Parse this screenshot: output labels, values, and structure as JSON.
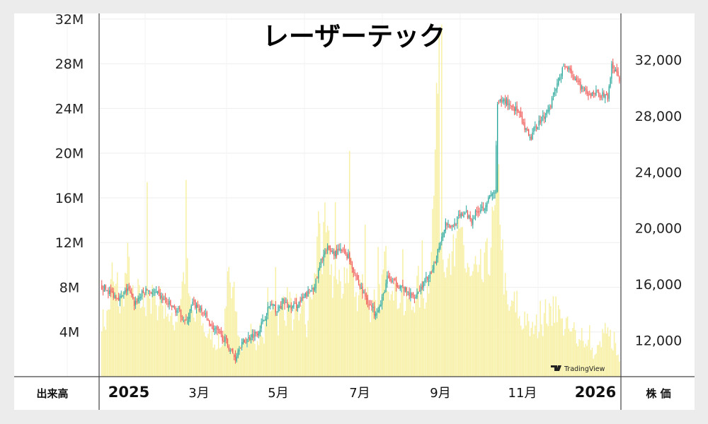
{
  "chart_data": {
    "type": "candlestick",
    "title": "レーザーテック",
    "left_axis": {
      "name": "出来高",
      "ticks": [
        "4M",
        "8M",
        "12M",
        "16M",
        "20M",
        "24M",
        "28M",
        "32M"
      ],
      "tick_values": [
        4,
        8,
        12,
        16,
        20,
        24,
        28,
        32
      ],
      "unit": "M",
      "ylim": [
        0,
        32.5
      ]
    },
    "right_axis": {
      "name": "株 価",
      "ticks": [
        "12,000",
        "16,000",
        "20,000",
        "24,000",
        "28,000",
        "32,000"
      ],
      "tick_values": [
        12000,
        16000,
        20000,
        24000,
        28000,
        32000
      ],
      "ylim": [
        9400,
        35300
      ]
    },
    "x_axis": {
      "labels": [
        {
          "text": "2025",
          "bold": true
        },
        {
          "text": "3月",
          "bold": false
        },
        {
          "text": "5月",
          "bold": false
        },
        {
          "text": "7月",
          "bold": false
        },
        {
          "text": "9月",
          "bold": false
        },
        {
          "text": "11月",
          "bold": false
        },
        {
          "text": "2026",
          "bold": true
        }
      ]
    },
    "grid": true,
    "colors": {
      "up": "#26a69a",
      "down": "#ef5350",
      "volume": "#f7f0a4",
      "grid": "#eeeeee",
      "axis": "#444444"
    },
    "price_path": [
      [
        0,
        15800
      ],
      [
        5,
        15500
      ],
      [
        10,
        15200
      ],
      [
        15,
        15000
      ],
      [
        20,
        15700
      ],
      [
        25,
        14600
      ],
      [
        30,
        15200
      ],
      [
        35,
        15600
      ],
      [
        40,
        15400
      ],
      [
        45,
        15100
      ],
      [
        50,
        14700
      ],
      [
        55,
        14300
      ],
      [
        60,
        14000
      ],
      [
        65,
        13200
      ],
      [
        70,
        14600
      ],
      [
        75,
        14300
      ],
      [
        80,
        13700
      ],
      [
        85,
        13000
      ],
      [
        90,
        12500
      ],
      [
        95,
        12000
      ],
      [
        100,
        11200
      ],
      [
        103,
        10700
      ],
      [
        106,
        11600
      ],
      [
        110,
        11900
      ],
      [
        115,
        12300
      ],
      [
        120,
        12600
      ],
      [
        125,
        13500
      ],
      [
        130,
        14600
      ],
      [
        135,
        14100
      ],
      [
        140,
        14700
      ],
      [
        145,
        14300
      ],
      [
        150,
        14500
      ],
      [
        155,
        14900
      ],
      [
        160,
        15500
      ],
      [
        165,
        16100
      ],
      [
        170,
        18000
      ],
      [
        175,
        18500
      ],
      [
        180,
        18200
      ],
      [
        185,
        18400
      ],
      [
        190,
        18000
      ],
      [
        195,
        16800
      ],
      [
        200,
        15600
      ],
      [
        205,
        14800
      ],
      [
        210,
        14000
      ],
      [
        215,
        14500
      ],
      [
        220,
        16400
      ],
      [
        225,
        16100
      ],
      [
        230,
        15900
      ],
      [
        235,
        15400
      ],
      [
        240,
        15100
      ],
      [
        245,
        15600
      ],
      [
        250,
        16300
      ],
      [
        255,
        16800
      ],
      [
        260,
        18800
      ],
      [
        265,
        20400
      ],
      [
        270,
        20100
      ],
      [
        275,
        20700
      ],
      [
        280,
        21100
      ],
      [
        285,
        20600
      ],
      [
        290,
        21300
      ],
      [
        295,
        21600
      ],
      [
        300,
        22300
      ],
      [
        303,
        22600
      ],
      [
        305,
        28800
      ],
      [
        310,
        29100
      ],
      [
        315,
        28800
      ],
      [
        320,
        28400
      ],
      [
        325,
        27300
      ],
      [
        330,
        26300
      ],
      [
        335,
        27300
      ],
      [
        340,
        27900
      ],
      [
        345,
        28600
      ],
      [
        350,
        30000
      ],
      [
        355,
        31300
      ],
      [
        360,
        31600
      ],
      [
        365,
        30400
      ],
      [
        370,
        30000
      ],
      [
        375,
        29300
      ],
      [
        380,
        29700
      ],
      [
        385,
        29500
      ],
      [
        390,
        29300
      ],
      [
        393,
        31500
      ],
      [
        396,
        31100
      ],
      [
        399,
        30600
      ]
    ],
    "volume_path": [
      [
        0,
        5.2
      ],
      [
        3,
        4.8
      ],
      [
        6,
        6.5
      ],
      [
        8,
        9.2
      ],
      [
        10,
        7.5
      ],
      [
        12,
        8.2
      ],
      [
        14,
        6.0
      ],
      [
        16,
        7.0
      ],
      [
        18,
        8.6
      ],
      [
        20,
        10.1
      ],
      [
        22,
        8.8
      ],
      [
        24,
        6.9
      ],
      [
        26,
        6.3
      ],
      [
        28,
        7.4
      ],
      [
        30,
        6.5
      ],
      [
        32,
        7.0
      ],
      [
        34,
        6.4
      ],
      [
        35,
        17.6
      ],
      [
        36,
        8.2
      ],
      [
        38,
        6.2
      ],
      [
        40,
        7.6
      ],
      [
        42,
        5.5
      ],
      [
        45,
        7.8
      ],
      [
        48,
        6.0
      ],
      [
        50,
        6.7
      ],
      [
        52,
        5.3
      ],
      [
        55,
        4.6
      ],
      [
        58,
        5.4
      ],
      [
        60,
        6.6
      ],
      [
        62,
        8.4
      ],
      [
        64,
        9.4
      ],
      [
        65,
        17.6
      ],
      [
        66,
        9.0
      ],
      [
        68,
        6.2
      ],
      [
        70,
        5.6
      ],
      [
        72,
        4.9
      ],
      [
        75,
        6.2
      ],
      [
        78,
        4.6
      ],
      [
        80,
        3.9
      ],
      [
        82,
        3.4
      ],
      [
        84,
        4.0
      ],
      [
        86,
        3.2
      ],
      [
        88,
        2.8
      ],
      [
        90,
        3.3
      ],
      [
        92,
        2.5
      ],
      [
        94,
        4.2
      ],
      [
        96,
        7.5
      ],
      [
        98,
        8.4
      ],
      [
        100,
        6.0
      ],
      [
        102,
        7.6
      ],
      [
        104,
        5.4
      ],
      [
        106,
        4.0
      ],
      [
        108,
        2.9
      ],
      [
        110,
        3.6
      ],
      [
        112,
        2.6
      ],
      [
        114,
        3.8
      ],
      [
        116,
        4.3
      ],
      [
        118,
        2.5
      ],
      [
        120,
        3.2
      ],
      [
        122,
        4.0
      ],
      [
        124,
        3.0
      ],
      [
        126,
        4.5
      ],
      [
        128,
        6.6
      ],
      [
        130,
        5.4
      ],
      [
        132,
        7.8
      ],
      [
        134,
        6.5
      ],
      [
        136,
        4.6
      ],
      [
        138,
        5.7
      ],
      [
        140,
        7.2
      ],
      [
        142,
        5.5
      ],
      [
        144,
        8.0
      ],
      [
        146,
        6.0
      ],
      [
        148,
        4.4
      ],
      [
        150,
        6.1
      ],
      [
        152,
        4.5
      ],
      [
        154,
        7.2
      ],
      [
        156,
        5.8
      ],
      [
        158,
        4.0
      ],
      [
        160,
        6.5
      ],
      [
        162,
        7.4
      ],
      [
        164,
        8.4
      ],
      [
        166,
        11.4
      ],
      [
        168,
        14.2
      ],
      [
        170,
        10.0
      ],
      [
        172,
        12.8
      ],
      [
        174,
        11.6
      ],
      [
        176,
        10.5
      ],
      [
        178,
        8.4
      ],
      [
        180,
        9.6
      ],
      [
        182,
        7.4
      ],
      [
        184,
        8.6
      ],
      [
        186,
        7.6
      ],
      [
        188,
        9.8
      ],
      [
        190,
        8.3
      ],
      [
        192,
        10.4
      ],
      [
        194,
        8.4
      ],
      [
        196,
        6.8
      ],
      [
        198,
        8.0
      ],
      [
        200,
        9.1
      ],
      [
        202,
        7.6
      ],
      [
        204,
        8.4
      ],
      [
        206,
        6.6
      ],
      [
        208,
        5.4
      ],
      [
        210,
        6.6
      ],
      [
        212,
        5.0
      ],
      [
        214,
        6.9
      ],
      [
        216,
        8.2
      ],
      [
        218,
        10.2
      ],
      [
        220,
        9.7
      ],
      [
        222,
        8.4
      ],
      [
        224,
        9.4
      ],
      [
        226,
        8.0
      ],
      [
        228,
        7.0
      ],
      [
        230,
        7.6
      ],
      [
        232,
        6.4
      ],
      [
        234,
        6.0
      ],
      [
        236,
        7.2
      ],
      [
        238,
        6.0
      ],
      [
        240,
        6.5
      ],
      [
        242,
        7.7
      ],
      [
        244,
        8.2
      ],
      [
        246,
        6.4
      ],
      [
        248,
        7.0
      ],
      [
        250,
        7.6
      ],
      [
        252,
        8.7
      ],
      [
        254,
        12.4
      ],
      [
        256,
        15.8
      ],
      [
        258,
        25.2
      ],
      [
        260,
        16.4
      ],
      [
        262,
        11.6
      ],
      [
        264,
        10.2
      ],
      [
        266,
        12.5
      ],
      [
        268,
        9.5
      ],
      [
        270,
        12.7
      ],
      [
        272,
        8.8
      ],
      [
        274,
        13.4
      ],
      [
        276,
        11.0
      ],
      [
        278,
        12.6
      ],
      [
        280,
        9.4
      ],
      [
        282,
        10.6
      ],
      [
        284,
        9.0
      ],
      [
        286,
        8.6
      ],
      [
        288,
        10.2
      ],
      [
        290,
        8.0
      ],
      [
        292,
        9.4
      ],
      [
        294,
        8.5
      ],
      [
        296,
        10.0
      ],
      [
        298,
        9.8
      ],
      [
        300,
        12.4
      ],
      [
        302,
        13.6
      ],
      [
        304,
        14.2
      ],
      [
        306,
        18.4
      ],
      [
        308,
        12.8
      ],
      [
        310,
        8.9
      ],
      [
        312,
        6.8
      ],
      [
        314,
        5.4
      ],
      [
        316,
        7.0
      ],
      [
        318,
        4.6
      ],
      [
        320,
        6.6
      ],
      [
        322,
        5.0
      ],
      [
        324,
        4.4
      ],
      [
        326,
        5.6
      ],
      [
        328,
        4.8
      ],
      [
        330,
        3.9
      ],
      [
        332,
        4.2
      ],
      [
        334,
        5.0
      ],
      [
        336,
        4.4
      ],
      [
        338,
        5.2
      ],
      [
        340,
        4.6
      ],
      [
        342,
        5.9
      ],
      [
        344,
        5.2
      ],
      [
        346,
        5.8
      ],
      [
        348,
        4.8
      ],
      [
        350,
        6.8
      ],
      [
        352,
        5.6
      ],
      [
        354,
        5.0
      ],
      [
        356,
        4.4
      ],
      [
        358,
        4.8
      ],
      [
        360,
        4.2
      ],
      [
        362,
        3.6
      ],
      [
        364,
        4.4
      ],
      [
        366,
        3.6
      ],
      [
        368,
        3.2
      ],
      [
        370,
        4.2
      ],
      [
        372,
        3.0
      ],
      [
        374,
        2.6
      ],
      [
        376,
        3.2
      ],
      [
        378,
        2.2
      ],
      [
        380,
        1.8
      ],
      [
        382,
        2.5
      ],
      [
        384,
        2.8
      ],
      [
        386,
        3.6
      ],
      [
        388,
        4.2
      ],
      [
        390,
        3.8
      ],
      [
        392,
        2.6
      ],
      [
        394,
        2.0
      ],
      [
        396,
        2.6
      ],
      [
        398,
        1.8
      ],
      [
        399,
        1.6
      ]
    ],
    "volume_spikes": [
      [
        35,
        17.4
      ],
      [
        65,
        17.6
      ],
      [
        104,
        5.8
      ],
      [
        134,
        9.8
      ],
      [
        167,
        14.8
      ],
      [
        180,
        15.6
      ],
      [
        187,
        9.8
      ],
      [
        191,
        20.2
      ],
      [
        203,
        13.6
      ],
      [
        213,
        11.6
      ],
      [
        232,
        11.4
      ],
      [
        247,
        12.2
      ],
      [
        258,
        26.3
      ],
      [
        260,
        30.7
      ],
      [
        262,
        31.5
      ],
      [
        268,
        11.0
      ],
      [
        278,
        13.4
      ],
      [
        297,
        12.4
      ],
      [
        306,
        19.0
      ],
      [
        318,
        7.6
      ],
      [
        338,
        6.8
      ],
      [
        348,
        7.2
      ],
      [
        352,
        6.4
      ],
      [
        376,
        4.6
      ],
      [
        392,
        4.2
      ],
      [
        395,
        4.0
      ]
    ],
    "watermark": "TradingView"
  }
}
